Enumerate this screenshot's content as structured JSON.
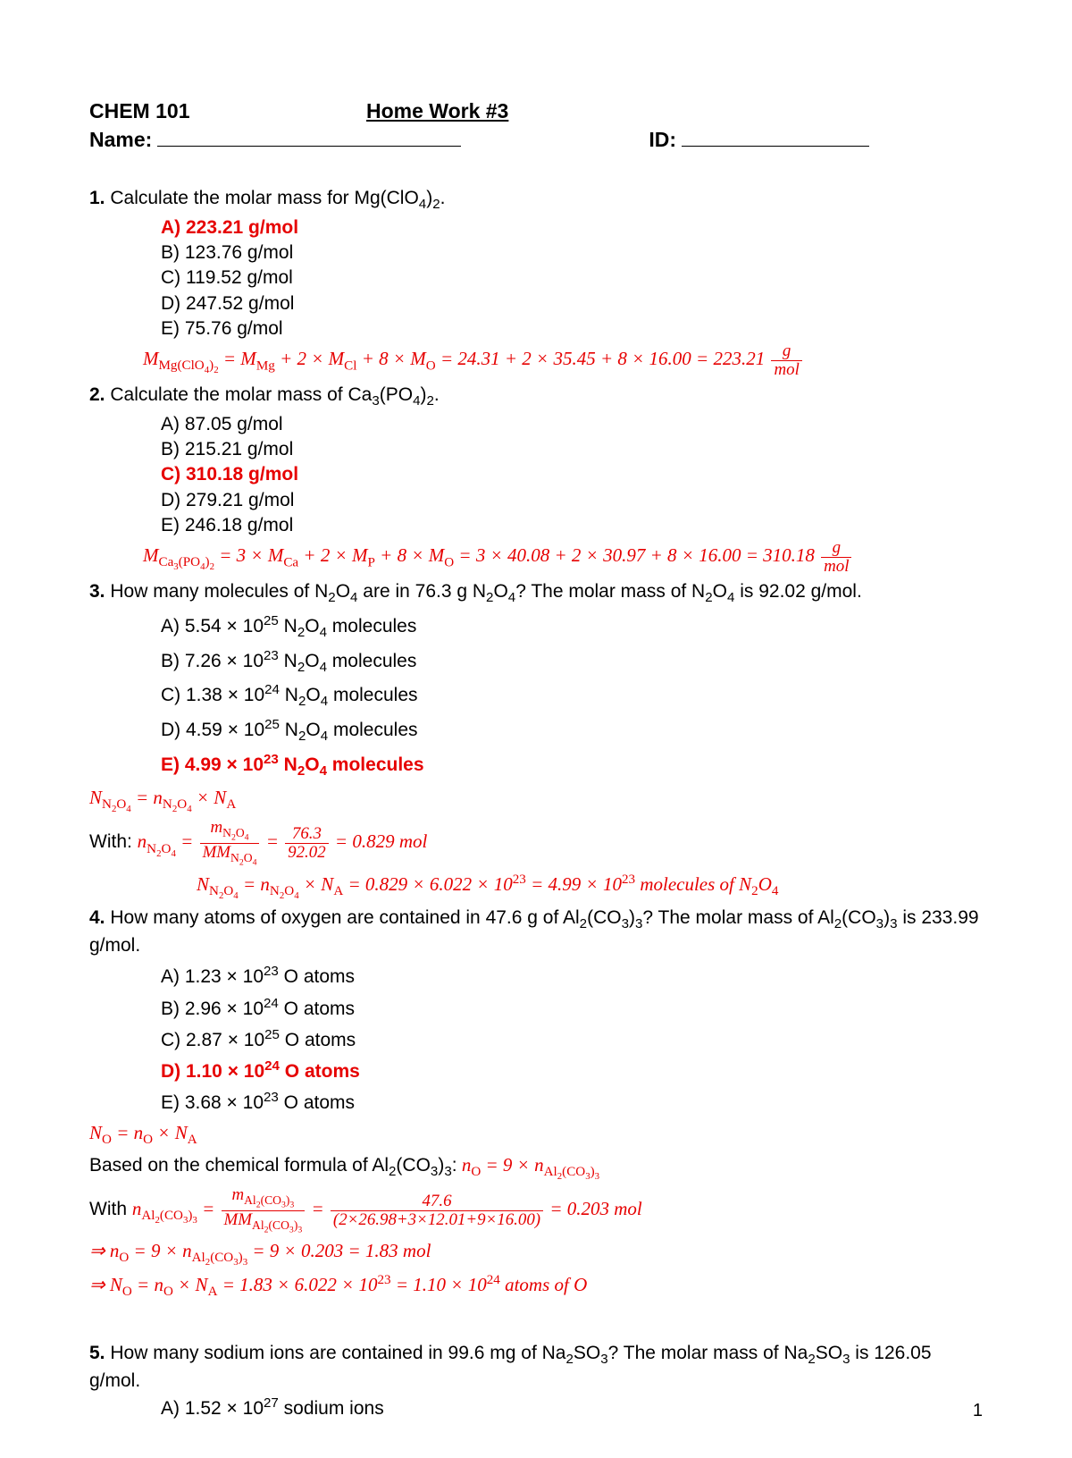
{
  "header": {
    "course": "CHEM 101",
    "title": "Home Work #3",
    "name_label": "Name:",
    "id_label": "ID:"
  },
  "colors": {
    "correct": "#e60000",
    "text": "#000000"
  },
  "page_number": "1",
  "questions": [
    {
      "num": "1.",
      "text_pre": "Calculate the molar mass for Mg(ClO",
      "text_sub": "4",
      "text_post": ")",
      "text_sub2": "2",
      "text_end": ".",
      "options": [
        {
          "label": "A) 223.21 g/mol",
          "correct": true
        },
        {
          "label": "B) 123.76 g/mol",
          "correct": false
        },
        {
          "label": "C) 119.52 g/mol",
          "correct": false
        },
        {
          "label": "D) 247.52 g/mol",
          "correct": false
        },
        {
          "label": "E) 75.76 g/mol",
          "correct": false
        }
      ],
      "formula_html": "M<sub>Mg(ClO<sub>4</sub>)<sub>2</sub></sub> =  M<sub>Mg</sub> + 2 × M<sub>Cl</sub> + 8 × M<sub>O</sub> = 24.31 + 2 × 35.45 + 8 × 16.00 = 223.21 <span class='frac'><span class='num'>g</span><span class='den'>mol</span></span>"
    },
    {
      "num": "2.",
      "text_pre": "Calculate the molar mass of Ca",
      "text_sub": "3",
      "text_post": "(PO",
      "text_sub2": "4",
      "text_post2": ")",
      "text_sub3": "2",
      "text_end": ".",
      "options": [
        {
          "label": "A) 87.05 g/mol",
          "correct": false
        },
        {
          "label": "B) 215.21 g/mol",
          "correct": false
        },
        {
          "label": "C) 310.18 g/mol",
          "correct": true
        },
        {
          "label": "D) 279.21 g/mol",
          "correct": false
        },
        {
          "label": "E) 246.18 g/mol",
          "correct": false
        }
      ],
      "formula_html": "M<sub>Ca<sub>3</sub>(PO<sub>4</sub>)<sub>2</sub></sub> =  3 × M<sub>Ca</sub> + 2 × M<sub>P</sub> + 8 × M<sub>O</sub> = 3 × 40.08 + 2 × 30.97 + 8 × 16.00 = 310.18 <span class='frac'><span class='num'>g</span><span class='den'>mol</span></span>"
    },
    {
      "num": "3.",
      "q_html": "How many molecules of N<sub>2</sub>O<sub>4</sub> are in 76.3 g N<sub>2</sub>O<sub>4</sub>?  The molar mass of N<sub>2</sub>O<sub>4</sub> is 92.02 g/mol.",
      "options_html": [
        {
          "html": "A) 5.54 × 10<sup>25</sup> N<sub>2</sub>O<sub>4</sub> molecules",
          "correct": false
        },
        {
          "html": "B) 7.26 × 10<sup>23</sup> N<sub>2</sub>O<sub>4</sub> molecules",
          "correct": false
        },
        {
          "html": "C) 1.38 × 10<sup>24</sup> N<sub>2</sub>O<sub>4</sub> molecules",
          "correct": false
        },
        {
          "html": "D) 4.59 × 10<sup>25</sup> N<sub>2</sub>O<sub>4</sub> molecules",
          "correct": false
        },
        {
          "html": "E) 4.99 × 10<sup>23</sup> N<sub>2</sub>O<sub>4</sub> molecules",
          "correct": true
        }
      ],
      "work": [
        {
          "cls": "",
          "html": "N<sub>N<sub>2</sub>O<sub>4</sub></sub> = n<sub>N<sub>2</sub>O<sub>4</sub></sub> × N<sub>A</sub>"
        },
        {
          "cls": "black-prefix",
          "prefix": "With: ",
          "html": "n<sub>N<sub>2</sub>O<sub>4</sub></sub> = <span class='frac'><span class='num'>m<sub>N<sub>2</sub>O<sub>4</sub></sub></span><span class='den'>MM<sub>N<sub>2</sub>O<sub>4</sub></sub></span></span> = <span class='frac'><span class='num'>76.3</span><span class='den'>92.02</span></span> = 0.829 mol"
        },
        {
          "cls": "indent2",
          "html": "N<sub>N<sub>2</sub>O<sub>4</sub></sub> = n<sub>N<sub>2</sub>O<sub>4</sub></sub> × N<sub>A</sub> = 0.829 × 6.022 × 10<sup>23</sup> = 4.99 × 10<sup>23</sup> molecules of N<sub>2</sub>O<sub>4</sub>"
        }
      ]
    },
    {
      "num": "4.",
      "q_html": "How many atoms of oxygen are contained in 47.6 g of Al<sub>2</sub>(CO<sub>3</sub>)<sub>3</sub>?  The molar mass of Al<sub>2</sub>(CO<sub>3</sub>)<sub>3</sub> is 233.99 g/mol.",
      "options_html": [
        {
          "html": "A) 1.23 × 10<sup>23</sup> O atoms",
          "correct": false
        },
        {
          "html": "B) 2.96 × 10<sup>24</sup> O atoms",
          "correct": false
        },
        {
          "html": "C) 2.87 × 10<sup>25</sup> O atoms",
          "correct": false
        },
        {
          "html": "D) 1.10 × 10<sup>24</sup> O atoms",
          "correct": true
        },
        {
          "html": "E) 3.68 × 10<sup>23</sup> O atoms",
          "correct": false
        }
      ],
      "work": [
        {
          "cls": "",
          "html": "N<sub>O</sub> = n<sub>O</sub> × N<sub>A</sub>"
        },
        {
          "cls": "",
          "html": "<span class='black' style='font-style:normal'>Based on the chemical formula of Al<sub>2</sub>(CO<sub>3</sub>)<sub>3</sub>:</span> n<sub>O</sub> = 9 × n<sub>Al<sub>2</sub>(CO<sub>3</sub>)<sub>3</sub></sub>",
          "mixed": true
        },
        {
          "cls": "black-prefix",
          "prefix": "With ",
          "html": "n<sub>Al<sub>2</sub>(CO<sub>3</sub>)<sub>3</sub></sub> = <span class='frac'><span class='num'>m<sub>Al<sub>2</sub>(CO<sub>3</sub>)<sub>3</sub></sub></span><span class='den'>MM<sub>Al<sub>2</sub>(CO<sub>3</sub>)<sub>3</sub></sub></span></span> = <span class='frac'><span class='num'>47.6</span><span class='den'>(2×26.98+3×12.01+9×16.00)</span></span> = 0.203 mol"
        },
        {
          "cls": "",
          "html": "⇒ n<sub>O</sub> = 9 × n<sub>Al<sub>2</sub>(CO<sub>3</sub>)<sub>3</sub></sub> = 9 × 0.203 = 1.83 mol"
        },
        {
          "cls": "",
          "html": "⇒ N<sub>O</sub> = n<sub>O</sub> × N<sub>A</sub> = 1.83 × 6.022 × 10<sup>23</sup> = 1.10 × 10<sup>24</sup> atoms of O"
        }
      ]
    },
    {
      "num": "5.",
      "q_html": "How many sodium ions are contained in 99.6 mg of Na<sub>2</sub>SO<sub>3</sub>?  The molar mass of Na<sub>2</sub>SO<sub>3</sub> is 126.05 g/mol.",
      "options_html": [
        {
          "html": "A) 1.52 × 10<sup>27</sup> sodium ions",
          "correct": false
        }
      ]
    }
  ]
}
